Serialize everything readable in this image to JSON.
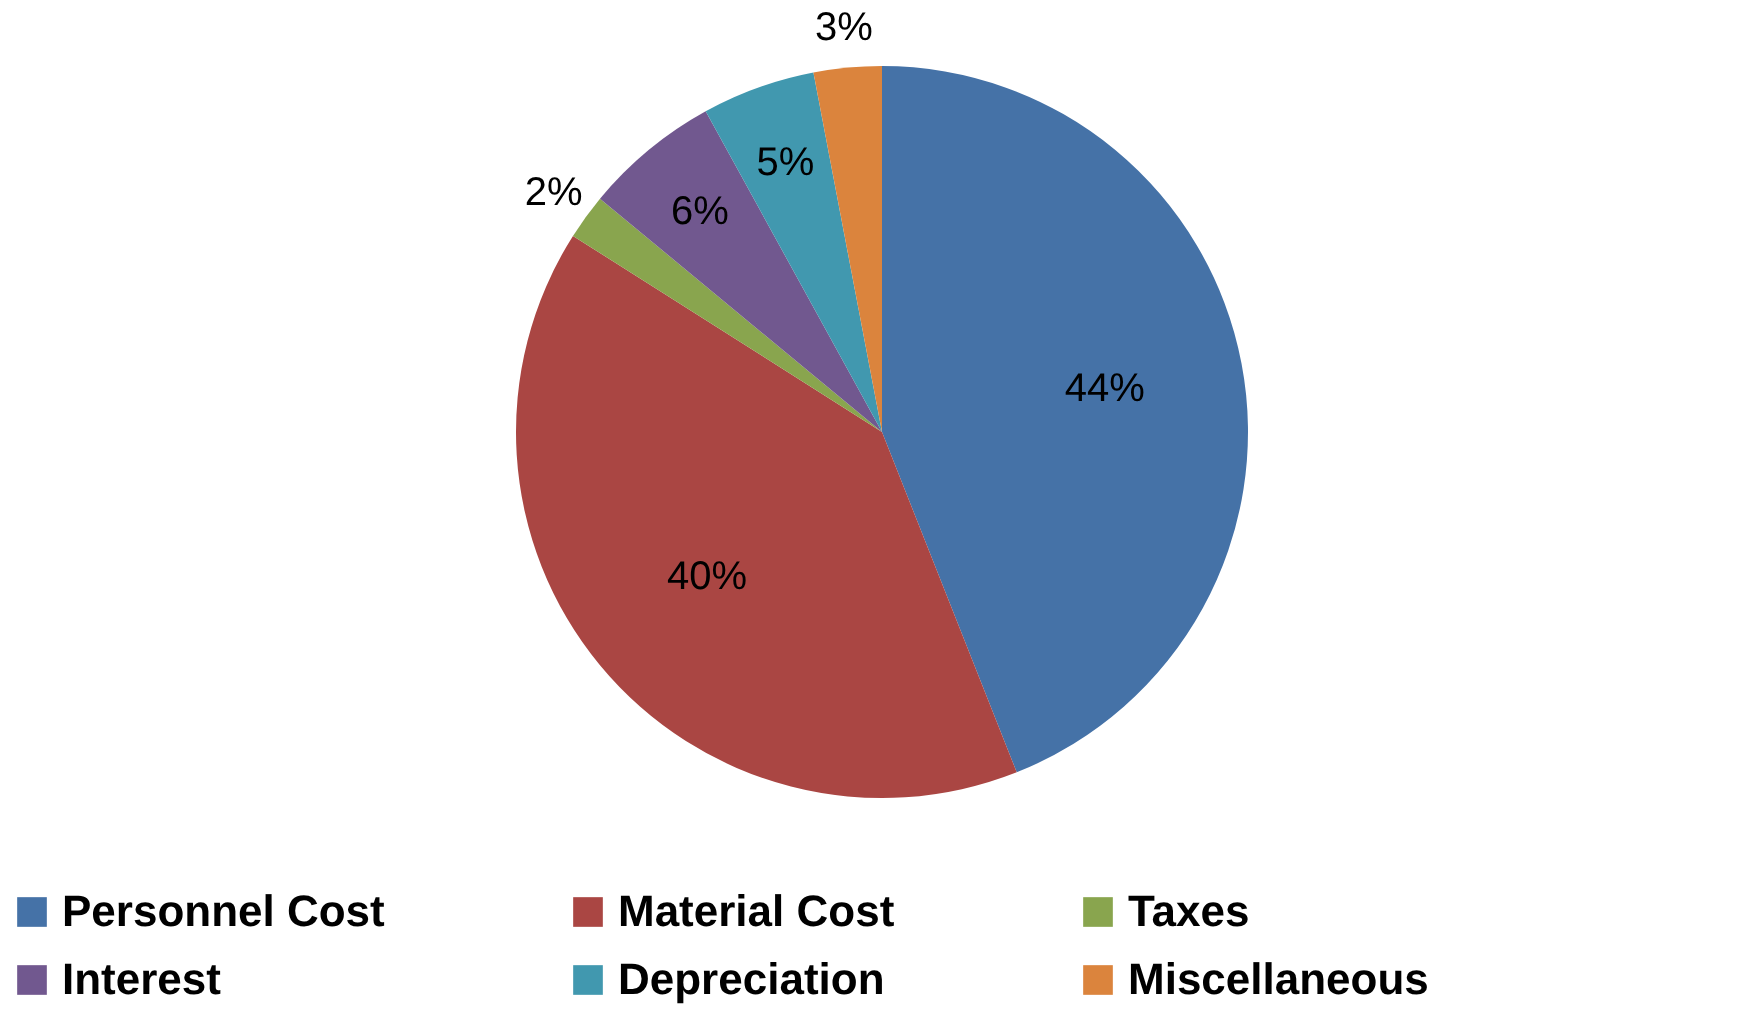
{
  "chart_data": {
    "type": "pie",
    "categories": [
      "Personnel Cost",
      "Material Cost",
      "Taxes",
      "Interest",
      "Depreciation",
      "Miscellaneous"
    ],
    "values": [
      44,
      40,
      2,
      6,
      5,
      3
    ],
    "colors": [
      "#4572a7",
      "#aa4643",
      "#89a54e",
      "#71588f",
      "#4198af",
      "#db843d"
    ],
    "value_labels": [
      "44%",
      "40%",
      "2%",
      "6%",
      "5%",
      "3%"
    ],
    "legend": "bottom"
  }
}
